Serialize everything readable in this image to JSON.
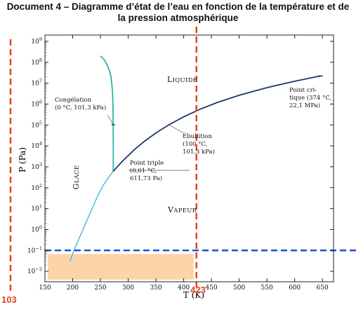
{
  "document": {
    "title_line1": "Document 4 – Diagramme d’état de l’eau en fonction de la température et de",
    "title_line2": "la pression atmosphérique"
  },
  "chart_data": {
    "type": "line",
    "xlabel": "T (K)",
    "ylabel": "P (Pa)",
    "xlim": [
      150,
      670
    ],
    "y_scale": "log",
    "ylim_exp": [
      -2.5,
      9.3
    ],
    "x_ticks": [
      "150",
      "200",
      "250",
      "300",
      "350",
      "400",
      "450",
      "500",
      "550",
      "600",
      "650"
    ],
    "y_tick_exponents": [
      -2,
      -1,
      0,
      1,
      2,
      3,
      4,
      5,
      6,
      7,
      8,
      9
    ],
    "grid": false,
    "series": [
      {
        "key": "sublimation",
        "color": "#45b3dc",
        "x": [
          195,
          205,
          215,
          225,
          235,
          245,
          255,
          265,
          273.16
        ],
        "y": [
          0.03,
          0.15,
          0.6,
          2.5,
          10,
          40,
          130,
          320,
          611.73
        ]
      },
      {
        "key": "fusion",
        "color": "#2bb5a4",
        "x": [
          273.16,
          273.16,
          273.0,
          272.6,
          271.5,
          269,
          265,
          258,
          250
        ],
        "y": [
          611.73,
          10000,
          101325,
          1000000,
          5000000,
          20000000,
          50000000,
          120000000,
          200000000
        ]
      },
      {
        "key": "vaporisation",
        "color": "#1f3570",
        "x": [
          273.16,
          290,
          310,
          330,
          350,
          373.15,
          400,
          430,
          460,
          500,
          550,
          600,
          647
        ],
        "y": [
          611.73,
          1900,
          6200,
          17200,
          41700,
          101325,
          245000,
          570000,
          1170000,
          2640000,
          6100000,
          12300000,
          22100000
        ]
      }
    ],
    "points": [
      {
        "key": "point-triple",
        "x": 273.16,
        "y": 611.73,
        "label_lines": [
          "Point triple",
          "(0,01 °C,",
          "611,73 Pa)"
        ]
      },
      {
        "key": "ebullition",
        "x": 373.15,
        "y": 101325,
        "label_lines": [
          "Ébullition",
          "(100 °C,",
          "101,3 kPa)"
        ]
      },
      {
        "key": "point-critique",
        "x": 647,
        "y": 22100000,
        "label_lines": [
          "Point cri-",
          "tique (374 °C,",
          "22,1 MPa)"
        ]
      },
      {
        "key": "congelation",
        "x": 273.16,
        "y": 101325,
        "label_lines": [
          "Congélation",
          "(0 °C, 101,3 kPa)"
        ]
      }
    ],
    "regions": [
      {
        "key": "glace",
        "label": "Glace"
      },
      {
        "key": "liquide",
        "label": "Liquide"
      },
      {
        "key": "vapeur",
        "label": "Vapeur"
      }
    ],
    "reference_lines": {
      "left_vertical": {
        "label": "103",
        "color": "#e34420"
      },
      "right_vertical": {
        "x": 423,
        "label": "423",
        "color": "#e34420"
      },
      "horizontal": {
        "y": 0.1,
        "color": "#1f4fd8"
      }
    },
    "shaded_zone": {
      "x": [
        150,
        423
      ],
      "y": [
        0.004,
        0.1
      ],
      "color": "#fbd5a8"
    }
  }
}
